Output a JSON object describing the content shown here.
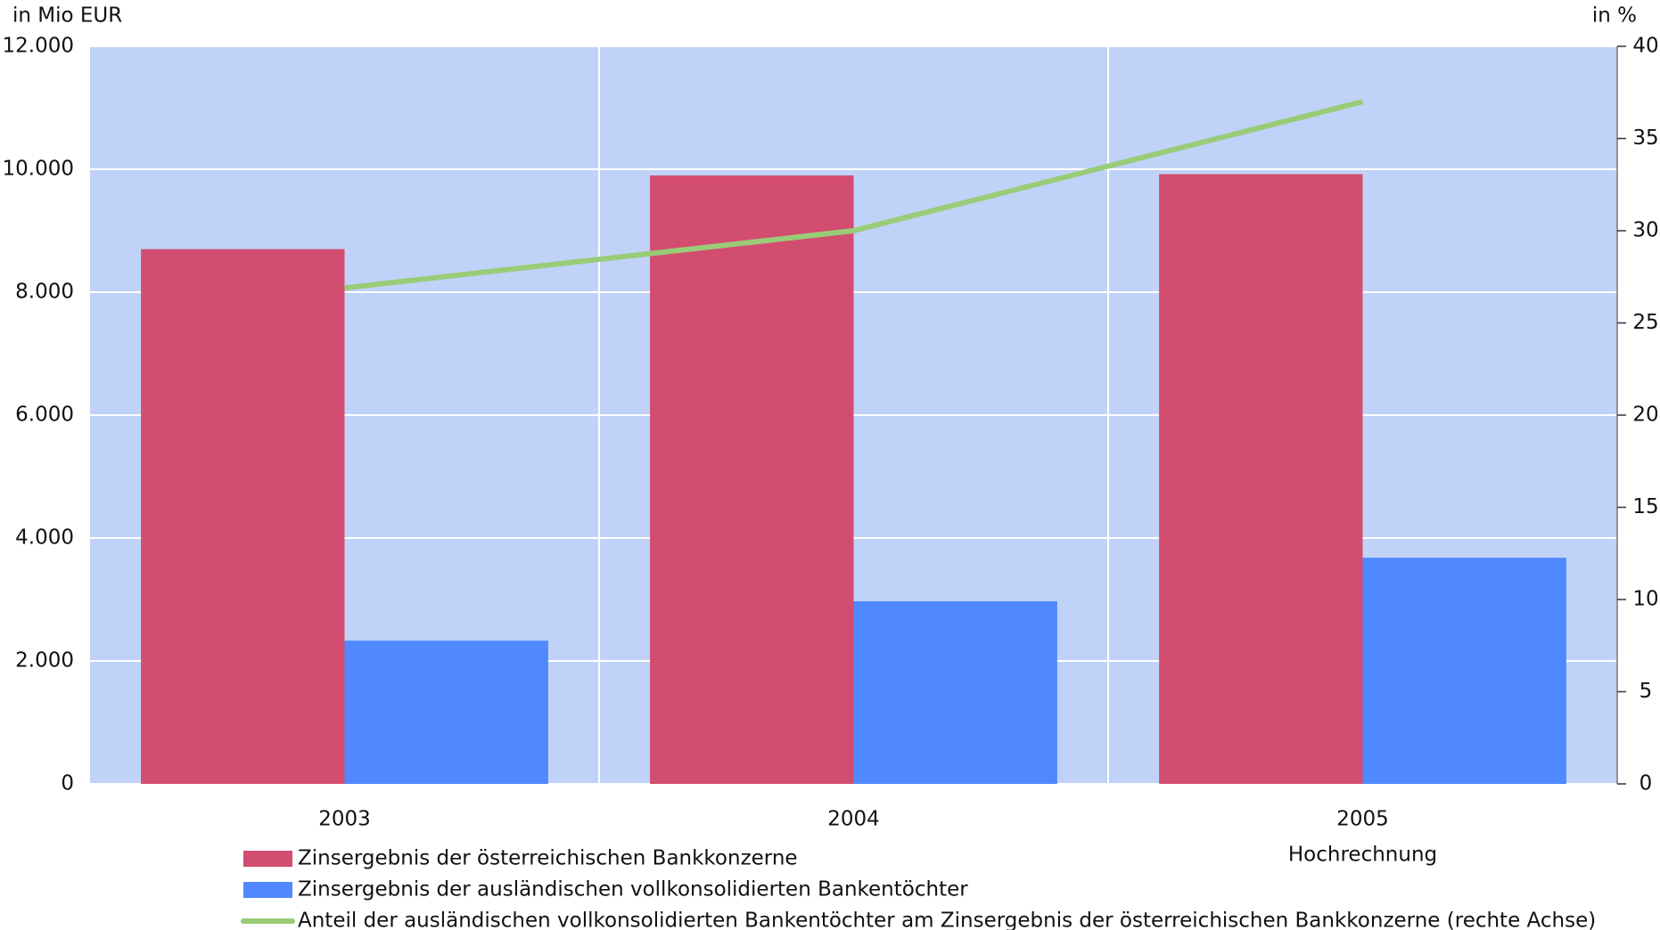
{
  "chart_data": {
    "type": "bar",
    "y_axis_label": "in Mio EUR",
    "y2_axis_label": "in %",
    "categories": [
      "2003",
      "2004",
      "2005"
    ],
    "x_annotation": "Hochrechnung",
    "series": [
      {
        "name": "Zinsergebnis der österreichischen Bankkonzerne",
        "color": "#d24d70",
        "type": "bar",
        "values": [
          8700,
          9900,
          9920
        ]
      },
      {
        "name": "Zinsergebnis der ausländischen vollkonsolidierten Bankentöchter",
        "color": "#4f88ff",
        "type": "bar",
        "values": [
          2330,
          2970,
          3680
        ]
      },
      {
        "name": "Anteil der ausländischen vollkonsolidierten Bankentöchter am Zinsergebnis der österreichischen Bankkonzerne (rechte Achse)",
        "color": "#99cc77",
        "type": "line",
        "axis": "y2",
        "values": [
          26.9,
          30.0,
          37.0
        ]
      }
    ],
    "ylim": [
      0,
      12000
    ],
    "yticks": [
      0,
      {
        "value": 2000,
        "label": "2.000"
      },
      {
        "value": 4000,
        "label": "4.000"
      },
      {
        "value": 6000,
        "label": "6.000"
      },
      {
        "value": 8000,
        "label": "8.000"
      },
      {
        "value": 10000,
        "label": "10.000"
      },
      {
        "value": 12000,
        "label": "12.000"
      }
    ],
    "y2lim": [
      0,
      40
    ],
    "y2ticks": [
      0,
      5,
      10,
      15,
      20,
      25,
      30,
      35,
      40
    ],
    "grid": true,
    "plot_background": "#c0d2f8"
  }
}
